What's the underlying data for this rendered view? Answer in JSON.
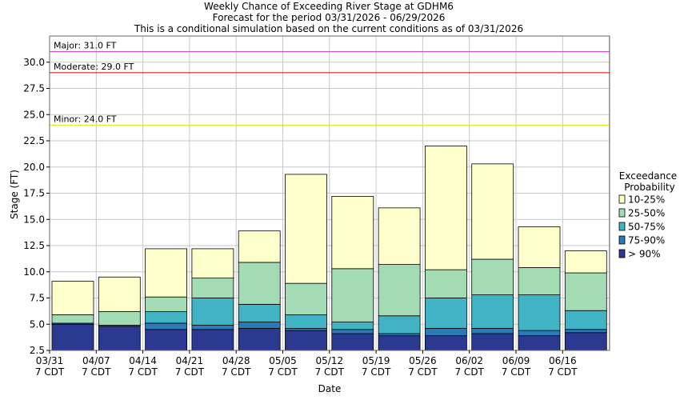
{
  "chart_data": {
    "type": "bar",
    "stacked": true,
    "title_lines": [
      "Weekly Chance of Exceeding River Stage at GDHM6",
      "Forecast for the period 03/31/2026 - 06/29/2026",
      "This is a conditional simulation based on the current conditions as of 03/31/2026"
    ],
    "xlabel": "Date",
    "ylabel": "Stage (FT)",
    "ylim": [
      2.5,
      32.5
    ],
    "yticks": [
      "2.5",
      "5.0",
      "7.5",
      "10.0",
      "12.5",
      "15.0",
      "17.5",
      "20.0",
      "22.5",
      "25.0",
      "27.5",
      "30.0"
    ],
    "grid": true,
    "x_tick_labels": [
      [
        "03/31",
        "7 CDT"
      ],
      [
        "04/07",
        "7 CDT"
      ],
      [
        "04/14",
        "7 CDT"
      ],
      [
        "04/21",
        "7 CDT"
      ],
      [
        "04/28",
        "7 CDT"
      ],
      [
        "05/05",
        "7 CDT"
      ],
      [
        "05/12",
        "7 CDT"
      ],
      [
        "05/19",
        "7 CDT"
      ],
      [
        "05/26",
        "7 CDT"
      ],
      [
        "06/02",
        "7 CDT"
      ],
      [
        "06/09",
        "7 CDT"
      ],
      [
        "06/16",
        "7 CDT"
      ]
    ],
    "thresholds": [
      {
        "label": "Major: 31.0 FT",
        "value": 31.0,
        "color": "#cc33cc"
      },
      {
        "label": "Moderate: 29.0 FT",
        "value": 29.0,
        "color": "#cc0000"
      },
      {
        "label": "Minor: 24.0 FT",
        "value": 24.0,
        "color": "#e6e600"
      }
    ],
    "legend": {
      "title_lines": [
        "Exceedance",
        "Probability"
      ],
      "position": "right"
    },
    "series": [
      {
        "name": "> 90%",
        "color": "#2b3990"
      },
      {
        "name": "75-90%",
        "color": "#2a7ab8"
      },
      {
        "name": "50-75%",
        "color": "#40b4c4"
      },
      {
        "name": "25-50%",
        "color": "#a3dbb5"
      },
      {
        "name": "10-25%",
        "color": "#ffffcc"
      }
    ],
    "bars": [
      [
        2.5,
        5.0,
        5.1,
        5.1,
        5.9,
        9.1
      ],
      [
        2.5,
        4.8,
        4.9,
        4.9,
        6.2,
        9.5
      ],
      [
        2.5,
        4.5,
        5.1,
        6.2,
        7.6,
        12.2
      ],
      [
        2.5,
        4.5,
        4.9,
        7.5,
        9.4,
        12.2
      ],
      [
        2.5,
        4.6,
        5.2,
        6.9,
        10.9,
        13.9
      ],
      [
        2.5,
        4.4,
        4.6,
        5.9,
        8.9,
        19.3
      ],
      [
        2.5,
        4.1,
        4.5,
        5.2,
        10.3,
        17.2
      ],
      [
        2.5,
        3.9,
        4.1,
        5.8,
        10.7,
        16.1
      ],
      [
        2.5,
        3.9,
        4.6,
        7.5,
        10.2,
        22.0
      ],
      [
        2.5,
        4.1,
        4.6,
        7.8,
        11.2,
        20.3
      ],
      [
        2.5,
        3.9,
        4.4,
        7.8,
        10.4,
        14.3
      ],
      [
        2.5,
        4.2,
        4.5,
        6.3,
        9.9,
        12.0
      ]
    ]
  }
}
